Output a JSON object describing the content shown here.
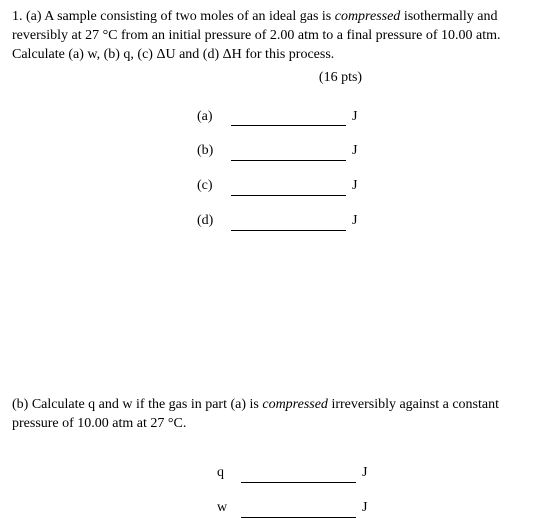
{
  "partA": {
    "text_prefix": "1. (a) A sample consisting of two moles of an ideal gas is ",
    "text_italic": "compressed",
    "text_mid": " isothermally and reversibly at 27 °C from an initial pressure of 2.00 atm to a final pressure of 10.00 atm. Calculate (a) w,  (b) q,  (c) ΔU and  (d) ΔH for this process.",
    "points": "(16 pts)",
    "answers": [
      {
        "label": "(a)",
        "unit": "J"
      },
      {
        "label": "(b)",
        "unit": "J"
      },
      {
        "label": "(c)",
        "unit": "J"
      },
      {
        "label": "(d)",
        "unit": "J"
      }
    ]
  },
  "partB": {
    "text_prefix": "(b) Calculate q and w if the gas in part (a) is ",
    "text_italic": "compressed",
    "text_suffix": " irreversibly against a constant pressure of 10.00 atm at 27 °C.",
    "answers": [
      {
        "label": "q",
        "unit": "J"
      },
      {
        "label": "w",
        "unit": "J"
      }
    ]
  }
}
